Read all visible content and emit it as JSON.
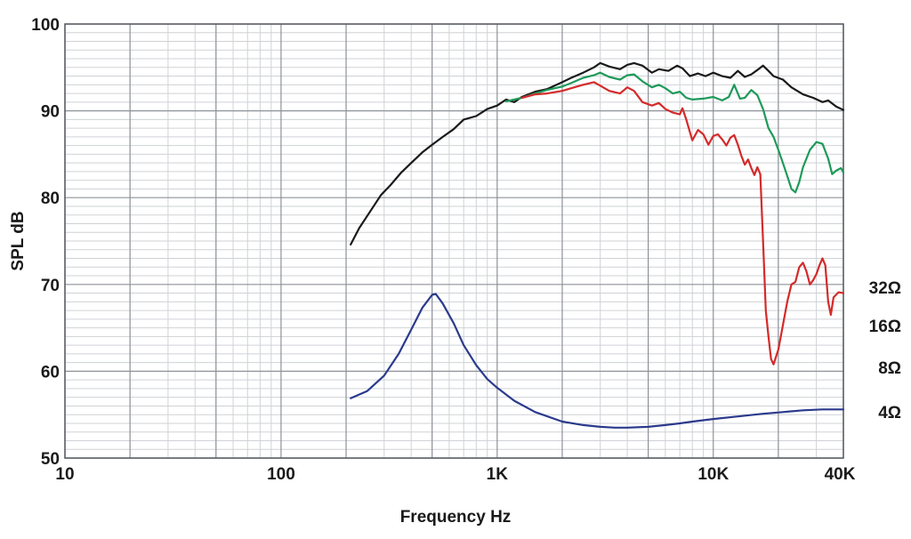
{
  "chart_data": {
    "type": "line",
    "title": "",
    "xlabel": "Frequency Hz",
    "ylabel": "SPL dB",
    "x_scale": "log",
    "xlim": [
      10,
      40000
    ],
    "ylim": [
      50,
      100
    ],
    "grid": true,
    "x_ticks": [
      {
        "value": 10,
        "label": "10"
      },
      {
        "value": 100,
        "label": "100"
      },
      {
        "value": 1000,
        "label": "1K"
      },
      {
        "value": 10000,
        "label": "10K"
      },
      {
        "value": 40000,
        "label": "40K"
      }
    ],
    "y_ticks": [
      {
        "value": 50,
        "label": "50"
      },
      {
        "value": 60,
        "label": "60"
      },
      {
        "value": 70,
        "label": "70"
      },
      {
        "value": 80,
        "label": "80"
      },
      {
        "value": 90,
        "label": "90"
      },
      {
        "value": 100,
        "label": "100"
      }
    ],
    "legend_placement": "right",
    "series": [
      {
        "name": "32Ω",
        "color": "#1a1a1a",
        "points": [
          [
            210,
            74.6
          ],
          [
            230,
            76.5
          ],
          [
            260,
            78.5
          ],
          [
            290,
            80.3
          ],
          [
            320,
            81.4
          ],
          [
            360,
            82.9
          ],
          [
            400,
            84.0
          ],
          [
            450,
            85.2
          ],
          [
            500,
            86.1
          ],
          [
            560,
            87.0
          ],
          [
            630,
            87.9
          ],
          [
            700,
            89.0
          ],
          [
            800,
            89.4
          ],
          [
            900,
            90.2
          ],
          [
            1000,
            90.6
          ],
          [
            1100,
            91.3
          ],
          [
            1200,
            91.0
          ],
          [
            1300,
            91.6
          ],
          [
            1500,
            92.2
          ],
          [
            1700,
            92.5
          ],
          [
            2000,
            93.3
          ],
          [
            2200,
            93.8
          ],
          [
            2500,
            94.4
          ],
          [
            2800,
            95.0
          ],
          [
            3000,
            95.5
          ],
          [
            3300,
            95.1
          ],
          [
            3700,
            94.8
          ],
          [
            4000,
            95.3
          ],
          [
            4300,
            95.5
          ],
          [
            4700,
            95.2
          ],
          [
            5200,
            94.4
          ],
          [
            5600,
            94.8
          ],
          [
            6200,
            94.6
          ],
          [
            6800,
            95.2
          ],
          [
            7200,
            94.9
          ],
          [
            7800,
            94.0
          ],
          [
            8500,
            94.3
          ],
          [
            9200,
            94.0
          ],
          [
            10000,
            94.4
          ],
          [
            11000,
            94.0
          ],
          [
            12000,
            93.8
          ],
          [
            13000,
            94.6
          ],
          [
            14000,
            93.9
          ],
          [
            15000,
            94.2
          ],
          [
            16000,
            94.7
          ],
          [
            17000,
            95.2
          ],
          [
            18000,
            94.6
          ],
          [
            19000,
            94.0
          ],
          [
            21000,
            93.6
          ],
          [
            23000,
            92.7
          ],
          [
            26000,
            91.9
          ],
          [
            29000,
            91.5
          ],
          [
            32000,
            91.0
          ],
          [
            34000,
            91.2
          ],
          [
            37000,
            90.5
          ],
          [
            40000,
            90.1
          ]
        ]
      },
      {
        "name": "16Ω",
        "color": "#1e9a5a",
        "points": [
          [
            1100,
            91.1
          ],
          [
            1300,
            91.5
          ],
          [
            1500,
            92.0
          ],
          [
            1700,
            92.4
          ],
          [
            2000,
            92.8
          ],
          [
            2200,
            93.2
          ],
          [
            2500,
            93.8
          ],
          [
            2800,
            94.1
          ],
          [
            3000,
            94.4
          ],
          [
            3300,
            93.9
          ],
          [
            3700,
            93.6
          ],
          [
            4000,
            94.1
          ],
          [
            4300,
            94.2
          ],
          [
            4700,
            93.4
          ],
          [
            5200,
            92.7
          ],
          [
            5600,
            93.0
          ],
          [
            6000,
            92.6
          ],
          [
            6500,
            92.0
          ],
          [
            7000,
            92.2
          ],
          [
            7500,
            91.5
          ],
          [
            8000,
            91.3
          ],
          [
            9000,
            91.4
          ],
          [
            10000,
            91.6
          ],
          [
            11000,
            91.2
          ],
          [
            11800,
            91.6
          ],
          [
            12500,
            93.0
          ],
          [
            13300,
            91.4
          ],
          [
            14000,
            91.5
          ],
          [
            15000,
            92.4
          ],
          [
            16000,
            91.8
          ],
          [
            17000,
            90.2
          ],
          [
            18000,
            88.0
          ],
          [
            19000,
            87.0
          ],
          [
            20000,
            85.5
          ],
          [
            21000,
            84.0
          ],
          [
            22000,
            82.5
          ],
          [
            23000,
            81.0
          ],
          [
            24000,
            80.6
          ],
          [
            25000,
            81.8
          ],
          [
            26000,
            83.5
          ],
          [
            28000,
            85.5
          ],
          [
            30000,
            86.4
          ],
          [
            32000,
            86.2
          ],
          [
            34000,
            84.5
          ],
          [
            35500,
            82.7
          ],
          [
            37000,
            83.1
          ],
          [
            39000,
            83.4
          ],
          [
            40000,
            82.9
          ]
        ]
      },
      {
        "name": "8Ω",
        "color": "#d42a2a",
        "points": [
          [
            1300,
            91.5
          ],
          [
            1500,
            91.9
          ],
          [
            1700,
            92.0
          ],
          [
            2000,
            92.3
          ],
          [
            2200,
            92.6
          ],
          [
            2500,
            93.0
          ],
          [
            2800,
            93.3
          ],
          [
            3000,
            92.9
          ],
          [
            3300,
            92.3
          ],
          [
            3700,
            92.0
          ],
          [
            4000,
            92.7
          ],
          [
            4300,
            92.3
          ],
          [
            4700,
            91.0
          ],
          [
            5200,
            90.6
          ],
          [
            5600,
            90.9
          ],
          [
            6000,
            90.2
          ],
          [
            6500,
            89.8
          ],
          [
            7000,
            89.6
          ],
          [
            7200,
            90.3
          ],
          [
            7500,
            89.0
          ],
          [
            8000,
            86.6
          ],
          [
            8500,
            87.8
          ],
          [
            9000,
            87.3
          ],
          [
            9500,
            86.1
          ],
          [
            10000,
            87.1
          ],
          [
            10500,
            87.3
          ],
          [
            11000,
            86.7
          ],
          [
            11500,
            86.0
          ],
          [
            12000,
            86.9
          ],
          [
            12500,
            87.2
          ],
          [
            13000,
            86.1
          ],
          [
            13500,
            84.8
          ],
          [
            14000,
            83.8
          ],
          [
            14500,
            84.4
          ],
          [
            15000,
            83.4
          ],
          [
            15500,
            82.6
          ],
          [
            16000,
            83.5
          ],
          [
            16500,
            82.7
          ],
          [
            17000,
            75.0
          ],
          [
            17500,
            67.0
          ],
          [
            18000,
            64.0
          ],
          [
            18500,
            61.4
          ],
          [
            19000,
            60.8
          ],
          [
            20000,
            62.5
          ],
          [
            21000,
            65.3
          ],
          [
            22000,
            68.0
          ],
          [
            23000,
            70.0
          ],
          [
            24000,
            70.3
          ],
          [
            25000,
            72.0
          ],
          [
            26000,
            72.5
          ],
          [
            27000,
            71.5
          ],
          [
            28000,
            70.0
          ],
          [
            29000,
            70.5
          ],
          [
            30000,
            71.2
          ],
          [
            31000,
            72.2
          ],
          [
            32000,
            73.0
          ],
          [
            33000,
            72.2
          ],
          [
            34000,
            68.0
          ],
          [
            35000,
            66.5
          ],
          [
            36000,
            68.5
          ],
          [
            38000,
            69.1
          ],
          [
            40000,
            69.0
          ]
        ]
      },
      {
        "name": "4Ω",
        "color": "#2a3a8c",
        "points": [
          [
            210,
            56.9
          ],
          [
            250,
            57.7
          ],
          [
            300,
            59.5
          ],
          [
            350,
            62.0
          ],
          [
            400,
            64.8
          ],
          [
            450,
            67.3
          ],
          [
            500,
            68.8
          ],
          [
            520,
            68.9
          ],
          [
            560,
            67.8
          ],
          [
            630,
            65.5
          ],
          [
            700,
            63.0
          ],
          [
            800,
            60.7
          ],
          [
            900,
            59.1
          ],
          [
            1000,
            58.1
          ],
          [
            1200,
            56.6
          ],
          [
            1500,
            55.3
          ],
          [
            2000,
            54.2
          ],
          [
            2500,
            53.8
          ],
          [
            3000,
            53.6
          ],
          [
            3500,
            53.5
          ],
          [
            4000,
            53.5
          ],
          [
            5000,
            53.6
          ],
          [
            6000,
            53.8
          ],
          [
            7000,
            54.0
          ],
          [
            8000,
            54.2
          ],
          [
            10000,
            54.5
          ],
          [
            13000,
            54.8
          ],
          [
            17000,
            55.1
          ],
          [
            21000,
            55.3
          ],
          [
            26000,
            55.5
          ],
          [
            32000,
            55.6
          ],
          [
            40000,
            55.6
          ]
        ]
      }
    ]
  }
}
